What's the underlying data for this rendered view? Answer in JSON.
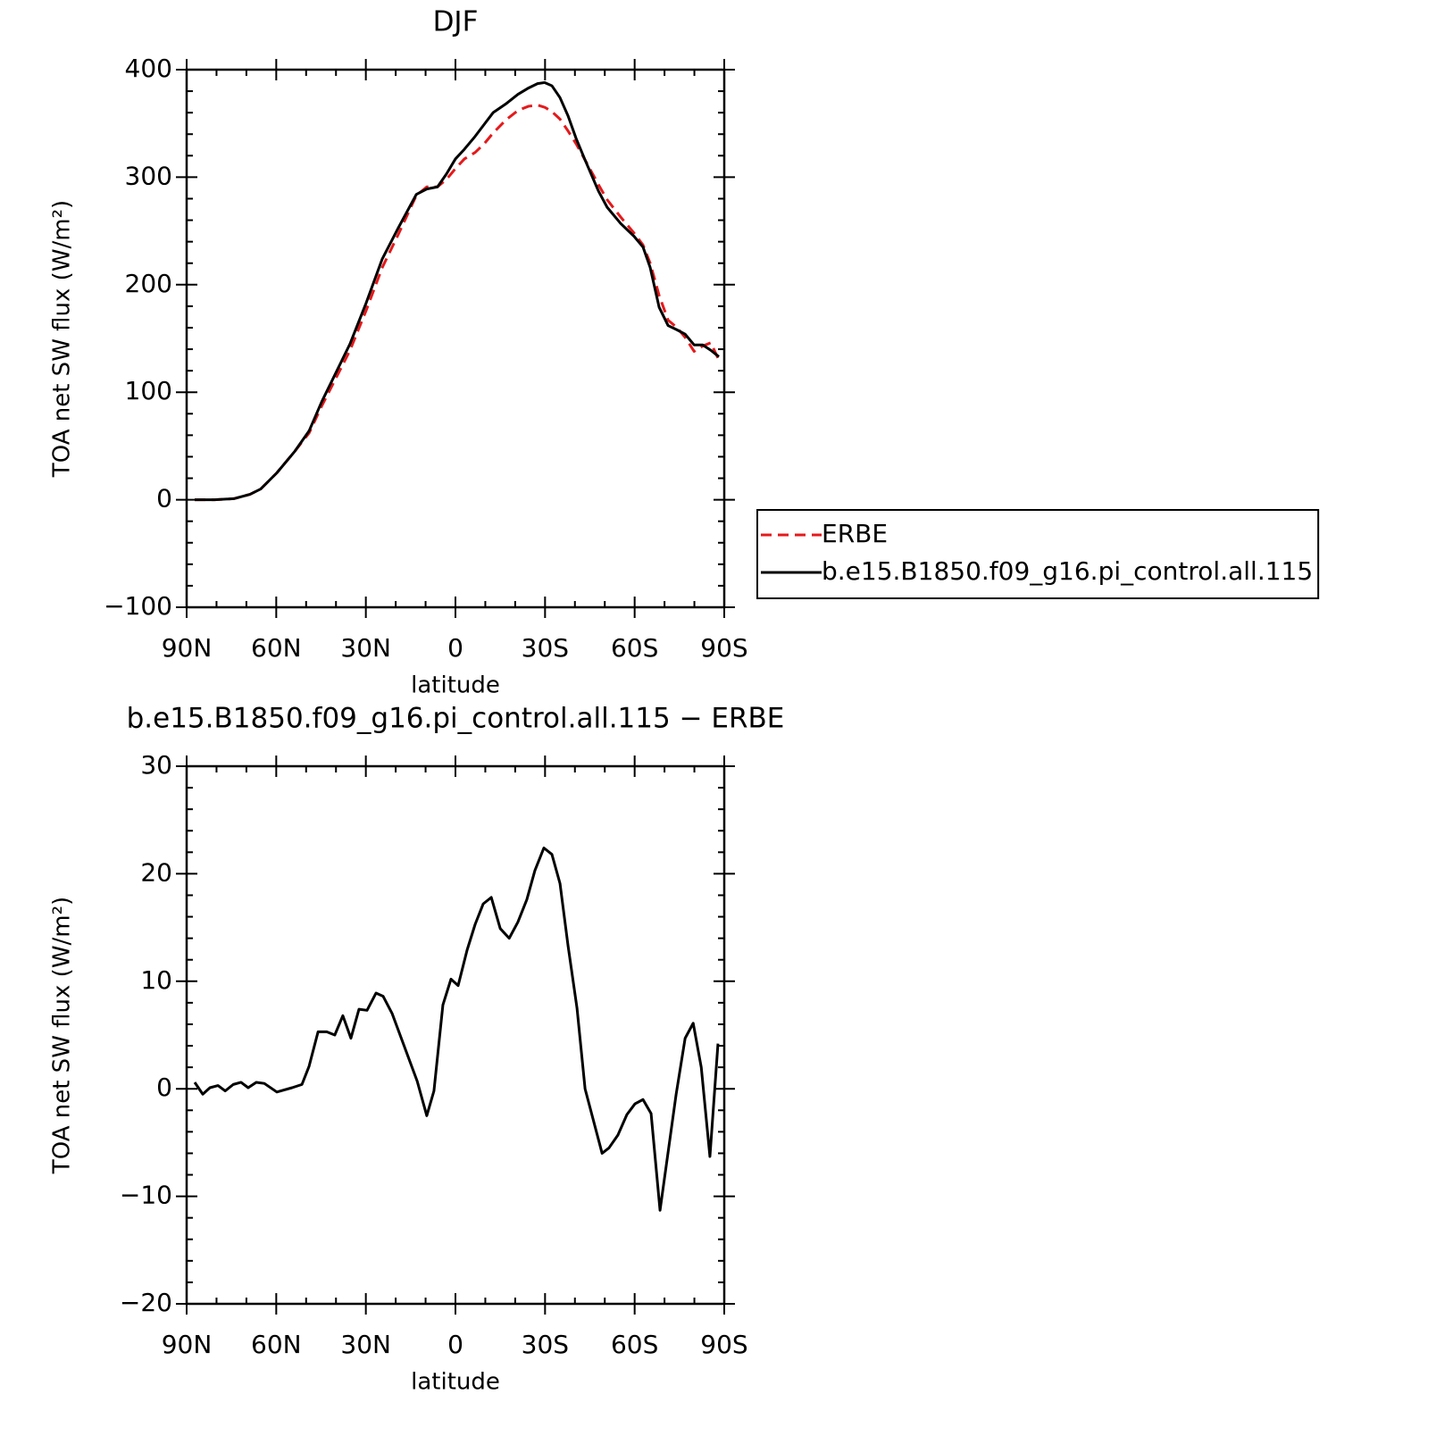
{
  "chart_data": [
    {
      "type": "line",
      "title": "DJF",
      "xlabel": "latitude",
      "ylabel": "TOA net SW flux (W/m²)",
      "xlim": [
        90,
        -90
      ],
      "xticks": [
        {
          "value": 90,
          "label": "90N"
        },
        {
          "value": 60,
          "label": "60N"
        },
        {
          "value": 30,
          "label": "30N"
        },
        0,
        {
          "value": -30,
          "label": "30S"
        },
        {
          "value": -60,
          "label": "60S"
        },
        {
          "value": -90,
          "label": "90S"
        }
      ],
      "ylim": [
        -100,
        400
      ],
      "yticks": [
        {
          "value": -100,
          "label": "−100"
        },
        0,
        100,
        200,
        300,
        400
      ],
      "legend": "right",
      "x": [
        87.3,
        80.7,
        74.2,
        68.8,
        65.2,
        59.8,
        53.8,
        49.0,
        44.8,
        40.4,
        35.3,
        29.9,
        24.5,
        19.1,
        13.1,
        9.6,
        6.0,
        3.0,
        0.0,
        -3.0,
        -6.6,
        -9.6,
        -12.6,
        -16.8,
        -20.9,
        -24.5,
        -27.5,
        -29.9,
        -32.3,
        -35.0,
        -37.7,
        -40.4,
        -43.4,
        -47.9,
        -50.8,
        -55.3,
        -59.8,
        -62.8,
        -65.2,
        -68.2,
        -71.2,
        -74.2,
        -76.9,
        -79.9,
        -82.8,
        -85.5,
        -88.2
      ],
      "series": [
        {
          "name": "ERBE",
          "color": "#e41a1c",
          "dashed": true,
          "values": [
            0,
            0,
            1,
            5,
            10,
            25,
            45,
            62,
            87,
            111,
            139,
            176,
            216,
            247,
            283,
            291,
            291,
            298,
            308,
            317,
            323,
            331,
            341,
            353,
            362,
            366,
            367,
            365,
            361,
            354,
            343,
            331,
            316,
            293,
            279,
            263,
            248,
            237,
            220,
            190,
            167,
            160,
            151,
            138,
            143,
            146,
            130
          ]
        },
        {
          "name": "b.e15.B1850.f09_g16.pi_control.all.115",
          "color": "#000000",
          "dashed": false,
          "values": [
            0,
            0,
            1,
            5,
            10,
            25,
            45,
            64,
            91,
            116,
            145,
            183,
            224,
            253,
            284,
            289,
            291,
            303,
            317,
            326,
            338,
            349,
            360,
            368,
            377,
            383,
            387,
            388,
            385,
            374,
            357,
            336,
            316,
            287,
            272,
            257,
            245,
            235,
            216,
            179,
            162,
            158,
            154,
            144,
            144,
            139,
            133
          ]
        }
      ]
    },
    {
      "type": "line",
      "title": "b.e15.B1850.f09_g16.pi_control.all.115 − ERBE",
      "xlabel": "latitude",
      "ylabel": "TOA net SW flux (W/m²)",
      "xlim": [
        90,
        -90
      ],
      "xticks": [
        {
          "value": 90,
          "label": "90N"
        },
        {
          "value": 60,
          "label": "60N"
        },
        {
          "value": 30,
          "label": "30N"
        },
        0,
        {
          "value": -30,
          "label": "30S"
        },
        {
          "value": -60,
          "label": "60S"
        },
        {
          "value": -90,
          "label": "90S"
        }
      ],
      "ylim": [
        -20,
        30
      ],
      "yticks": [
        {
          "value": -20,
          "label": "−20"
        },
        {
          "value": -10,
          "label": "−10"
        },
        0,
        10,
        20,
        30
      ],
      "x": [
        87.3,
        84.6,
        82.2,
        79.5,
        77.1,
        74.4,
        71.8,
        69.4,
        66.7,
        64.0,
        59.8,
        54.7,
        51.4,
        49.0,
        46.0,
        43.1,
        40.4,
        37.7,
        35.0,
        32.3,
        29.6,
        26.6,
        24.2,
        21.2,
        12.8,
        9.6,
        7.2,
        4.2,
        1.5,
        -0.9,
        -3.9,
        -6.6,
        -9.3,
        -12.0,
        -15.0,
        -18.0,
        -20.9,
        -23.9,
        -26.6,
        -29.6,
        -32.3,
        -35.0,
        -37.7,
        -40.7,
        -43.4,
        -49.1,
        -51.4,
        -54.4,
        -57.4,
        -60.1,
        -62.8,
        -65.5,
        -68.5,
        -73.9,
        -76.9,
        -79.6,
        -82.3,
        -85.2,
        -87.9
      ],
      "series": [
        {
          "color": "#000000",
          "dashed": false,
          "values": [
            0.6,
            -0.5,
            0.1,
            0.3,
            -0.2,
            0.4,
            0.6,
            0.1,
            0.6,
            0.5,
            -0.3,
            0.1,
            0.4,
            2.1,
            5.3,
            5.3,
            5.0,
            6.8,
            4.7,
            7.4,
            7.3,
            8.9,
            8.6,
            7.0,
            0.7,
            -2.5,
            -0.2,
            7.8,
            10.2,
            9.6,
            12.9,
            15.3,
            17.2,
            17.8,
            14.9,
            14.0,
            15.5,
            17.6,
            20.3,
            22.4,
            21.8,
            19.1,
            13.3,
            7.5,
            0.0,
            -6.0,
            -5.5,
            -4.3,
            -2.4,
            -1.4,
            -1.0,
            -2.3,
            -11.3,
            -0.5,
            4.7,
            6.1,
            2.0,
            -6.3,
            4.2
          ]
        }
      ]
    }
  ]
}
